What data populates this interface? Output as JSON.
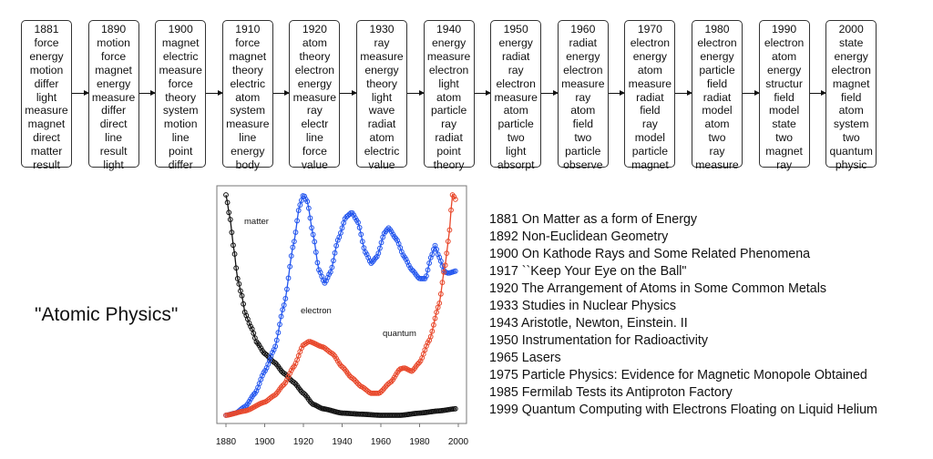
{
  "topic_boxes": [
    {
      "year": "1881",
      "words": [
        "force",
        "energy",
        "motion",
        "differ",
        "light",
        "measure",
        "magnet",
        "direct",
        "matter",
        "result"
      ]
    },
    {
      "year": "1890",
      "words": [
        "motion",
        "force",
        "magnet",
        "energy",
        "measure",
        "differ",
        "direct",
        "line",
        "result",
        "light"
      ]
    },
    {
      "year": "1900",
      "words": [
        "magnet",
        "electric",
        "measure",
        "force",
        "theory",
        "system",
        "motion",
        "line",
        "point",
        "differ"
      ]
    },
    {
      "year": "1910",
      "words": [
        "force",
        "magnet",
        "theory",
        "electric",
        "atom",
        "system",
        "measure",
        "line",
        "energy",
        "body"
      ]
    },
    {
      "year": "1920",
      "words": [
        "atom",
        "theory",
        "electron",
        "energy",
        "measure",
        "ray",
        "electr",
        "line",
        "force",
        "value"
      ]
    },
    {
      "year": "1930",
      "words": [
        "ray",
        "measure",
        "energy",
        "theory",
        "light",
        "wave",
        "radiat",
        "atom",
        "electric",
        "value"
      ]
    },
    {
      "year": "1940",
      "words": [
        "energy",
        "measure",
        "electron",
        "light",
        "atom",
        "particle",
        "ray",
        "radiat",
        "point",
        "theory"
      ]
    },
    {
      "year": "1950",
      "words": [
        "energy",
        "radiat",
        "ray",
        "electron",
        "measure",
        "atom",
        "particle",
        "two",
        "light",
        "absorpt"
      ]
    },
    {
      "year": "1960",
      "words": [
        "radiat",
        "energy",
        "electron",
        "measure",
        "ray",
        "atom",
        "field",
        "two",
        "particle",
        "observe"
      ]
    },
    {
      "year": "1970",
      "words": [
        "electron",
        "energy",
        "atom",
        "measure",
        "radiat",
        "field",
        "ray",
        "model",
        "particle",
        "magnet"
      ]
    },
    {
      "year": "1980",
      "words": [
        "electron",
        "energy",
        "particle",
        "field",
        "radiat",
        "model",
        "atom",
        "two",
        "ray",
        "measure"
      ]
    },
    {
      "year": "1990",
      "words": [
        "electron",
        "atom",
        "energy",
        "structur",
        "field",
        "model",
        "state",
        "two",
        "magnet",
        "ray"
      ]
    },
    {
      "year": "2000",
      "words": [
        "state",
        "energy",
        "electron",
        "magnet",
        "field",
        "atom",
        "system",
        "two",
        "quantum",
        "physic"
      ]
    }
  ],
  "topic_title": "\"Atomic Physics\"",
  "papers": [
    "1881 On Matter as a form of Energy",
    "1892 Non-Euclidean Geometry",
    "1900 On Kathode Rays and Some Related Phenomena",
    "1917 ``Keep Your Eye on the Ball\"",
    "1920 The Arrangement of Atoms in Some Common Metals",
    "1933 Studies in Nuclear Physics",
    "1943 Aristotle, Newton, Einstein. II",
    "1950 Instrumentation for Radioactivity",
    "1965 Lasers",
    "1975 Particle Physics: Evidence for Magnetic Monopole Obtained",
    "1985 Fermilab Tests its Antiproton Factory",
    "1999 Quantum Computing with Electrons Floating on Liquid Helium"
  ],
  "chart_data": {
    "type": "line",
    "title": "",
    "xlabel": "",
    "ylabel": "",
    "xlim": [
      1880,
      2000
    ],
    "ylim": [
      0,
      1
    ],
    "x_ticks": [
      "1880",
      "1900",
      "1920",
      "1940",
      "1960",
      "1980",
      "2000"
    ],
    "series": [
      {
        "name": "matter",
        "color": "#111111",
        "points": [
          [
            1880,
            1.0
          ],
          [
            1882,
            0.9
          ],
          [
            1884,
            0.76
          ],
          [
            1886,
            0.62
          ],
          [
            1888,
            0.55
          ],
          [
            1890,
            0.46
          ],
          [
            1893,
            0.4
          ],
          [
            1896,
            0.33
          ],
          [
            1900,
            0.28
          ],
          [
            1905,
            0.24
          ],
          [
            1910,
            0.19
          ],
          [
            1915,
            0.15
          ],
          [
            1920,
            0.1
          ],
          [
            1925,
            0.05
          ],
          [
            1930,
            0.03
          ],
          [
            1940,
            0.01
          ],
          [
            1950,
            0.005
          ],
          [
            1960,
            0.0
          ],
          [
            1970,
            0.0
          ],
          [
            1980,
            0.01
          ],
          [
            1990,
            0.02
          ],
          [
            1999,
            0.03
          ]
        ]
      },
      {
        "name": "electron",
        "color": "#2255ee",
        "points": [
          [
            1880,
            0.0
          ],
          [
            1885,
            0.01
          ],
          [
            1890,
            0.04
          ],
          [
            1895,
            0.1
          ],
          [
            1900,
            0.2
          ],
          [
            1905,
            0.3
          ],
          [
            1910,
            0.5
          ],
          [
            1915,
            0.78
          ],
          [
            1918,
            0.95
          ],
          [
            1920,
            1.0
          ],
          [
            1922,
            0.97
          ],
          [
            1925,
            0.82
          ],
          [
            1928,
            0.66
          ],
          [
            1931,
            0.6
          ],
          [
            1934,
            0.65
          ],
          [
            1938,
            0.8
          ],
          [
            1942,
            0.9
          ],
          [
            1945,
            0.92
          ],
          [
            1948,
            0.88
          ],
          [
            1952,
            0.74
          ],
          [
            1955,
            0.69
          ],
          [
            1958,
            0.72
          ],
          [
            1962,
            0.83
          ],
          [
            1964,
            0.85
          ],
          [
            1968,
            0.8
          ],
          [
            1972,
            0.72
          ],
          [
            1976,
            0.66
          ],
          [
            1980,
            0.62
          ],
          [
            1983,
            0.62
          ],
          [
            1986,
            0.72
          ],
          [
            1988,
            0.77
          ],
          [
            1990,
            0.72
          ],
          [
            1993,
            0.65
          ],
          [
            1995,
            0.645
          ],
          [
            1999,
            0.655
          ]
        ]
      },
      {
        "name": "quantum",
        "color": "#e8472a",
        "points": [
          [
            1880,
            0.0
          ],
          [
            1890,
            0.02
          ],
          [
            1900,
            0.06
          ],
          [
            1905,
            0.09
          ],
          [
            1910,
            0.14
          ],
          [
            1915,
            0.22
          ],
          [
            1920,
            0.32
          ],
          [
            1923,
            0.335
          ],
          [
            1930,
            0.31
          ],
          [
            1935,
            0.28
          ],
          [
            1940,
            0.22
          ],
          [
            1945,
            0.17
          ],
          [
            1950,
            0.13
          ],
          [
            1955,
            0.1
          ],
          [
            1959,
            0.1
          ],
          [
            1965,
            0.15
          ],
          [
            1970,
            0.21
          ],
          [
            1972,
            0.215
          ],
          [
            1976,
            0.2
          ],
          [
            1980,
            0.24
          ],
          [
            1985,
            0.34
          ],
          [
            1990,
            0.5
          ],
          [
            1993,
            0.67
          ],
          [
            1995,
            0.8
          ],
          [
            1997,
            1.0
          ],
          [
            1998,
            0.99
          ],
          [
            1999,
            0.97
          ]
        ]
      }
    ]
  }
}
